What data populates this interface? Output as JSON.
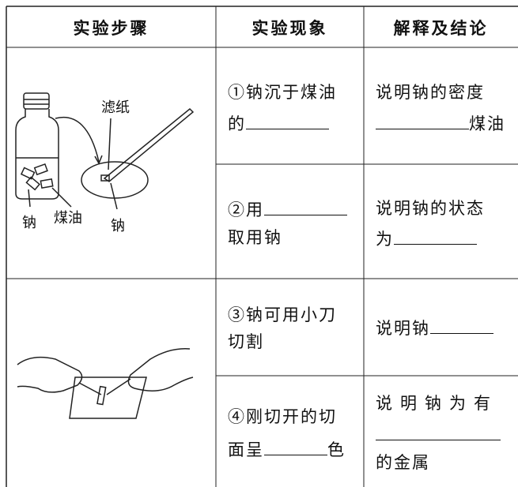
{
  "table": {
    "header": [
      "实验步骤",
      "实验现象",
      "解释及结论"
    ],
    "figure_labels": [
      "滤纸",
      "钠",
      "煤油",
      "钠"
    ],
    "rows": [
      {
        "phenomenon": [
          "①钠沉于煤油",
          "的"
        ],
        "conclusion": [
          "说明钠的密度",
          "煤油"
        ]
      },
      {
        "phenomenon": [
          "②用",
          "取用钠"
        ],
        "conclusion": [
          "说明钠的状态",
          "为"
        ]
      },
      {
        "phenomenon": [
          "③钠可用小刀",
          "切割"
        ],
        "conclusion": [
          "说明钠"
        ]
      },
      {
        "phenomenon": [
          "④刚切开的切",
          "面呈",
          "色"
        ],
        "conclusion": [
          "说明钠为有",
          "的金属"
        ]
      }
    ]
  }
}
